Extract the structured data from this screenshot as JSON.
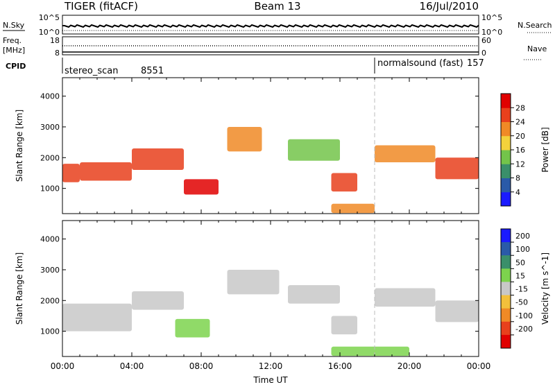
{
  "header": {
    "radar": "TIGER (fitACF)",
    "beam": "Beam 13",
    "date": "16/Jul/2010"
  },
  "summary_strips": {
    "nsky": {
      "left_label": "N.Sky",
      "left_ticks": [
        "10^5",
        "10^0"
      ],
      "right_label": "N.Search",
      "right_ticks": [
        "10^5",
        "10^0"
      ]
    },
    "freq": {
      "left_label_line1": "Freq.",
      "left_label_line2": "[MHz]",
      "left_ticks": [
        "18",
        "8"
      ],
      "right_label": "Nave",
      "right_ticks": [
        "60",
        "0"
      ]
    },
    "cpid": {
      "label": "CPID",
      "programs": [
        {
          "name": "stereo_scan",
          "id": "8551",
          "start_hour": 0
        },
        {
          "name": "normalsound (fast)",
          "id": "157",
          "start_hour": 18
        }
      ]
    }
  },
  "chart_data": [
    {
      "type": "heatmap",
      "title": "",
      "xlabel": "",
      "ylabel": "Slant Range [km]",
      "xlim": [
        "00:00",
        "24:00"
      ],
      "ylim": [
        180,
        4600
      ],
      "y_ticks": [
        1000,
        2000,
        3000,
        4000
      ],
      "colorbar": {
        "label": "Power [dB]",
        "ticks": [
          4,
          8,
          12,
          16,
          20,
          24,
          28
        ],
        "range": [
          0,
          32
        ],
        "colors": [
          "#1a1aff",
          "#2a5aa8",
          "#3a8f6a",
          "#73c44a",
          "#f3d23c",
          "#f08a26",
          "#e8401c",
          "#e00000"
        ]
      },
      "echo_regions": [
        {
          "start": "00:00",
          "end": "01:00",
          "range_km": [
            1200,
            1800
          ],
          "level_db": 24
        },
        {
          "start": "01:00",
          "end": "04:00",
          "range_km": [
            1250,
            1850
          ],
          "level_db": 26
        },
        {
          "start": "04:00",
          "end": "07:00",
          "range_km": [
            1600,
            2300
          ],
          "level_db": 24
        },
        {
          "start": "07:00",
          "end": "09:00",
          "range_km": [
            800,
            1300
          ],
          "level_db": 29
        },
        {
          "start": "09:30",
          "end": "11:30",
          "range_km": [
            2200,
            3000
          ],
          "level_db": 22
        },
        {
          "start": "13:00",
          "end": "16:00",
          "range_km": [
            1900,
            2600
          ],
          "level_db": 14
        },
        {
          "start": "15:30",
          "end": "17:00",
          "range_km": [
            900,
            1500
          ],
          "level_db": 24
        },
        {
          "start": "15:30",
          "end": "18:00",
          "range_km": [
            200,
            500
          ],
          "level_db": 22
        },
        {
          "start": "18:00",
          "end": "21:30",
          "range_km": [
            1850,
            2400
          ],
          "level_db": 20
        },
        {
          "start": "21:30",
          "end": "24:00",
          "range_km": [
            1300,
            2000
          ],
          "level_db": 26
        }
      ]
    },
    {
      "type": "heatmap",
      "title": "",
      "xlabel": "Time UT",
      "ylabel": "Slant Range [km]",
      "xlim": [
        "00:00",
        "24:00"
      ],
      "ylim": [
        180,
        4600
      ],
      "y_ticks": [
        1000,
        2000,
        3000,
        4000
      ],
      "x_ticks": [
        "00:00",
        "04:00",
        "08:00",
        "12:00",
        "16:00",
        "20:00",
        "00:00"
      ],
      "colorbar": {
        "label": "Velocity [m s^-1]",
        "ticks": [
          200,
          100,
          50,
          15,
          -15,
          -50,
          -100,
          -200
        ],
        "colors": [
          "#1a1aff",
          "#2a5aa8",
          "#3a8f6a",
          "#7dd34d",
          "#c8c8c8",
          "#f3c03c",
          "#f08a26",
          "#e8401c",
          "#e00000"
        ]
      },
      "echo_regions": [
        {
          "start": "00:00",
          "end": "04:00",
          "range_km": [
            1000,
            1900
          ],
          "velocity": 0
        },
        {
          "start": "04:00",
          "end": "07:00",
          "range_km": [
            1700,
            2300
          ],
          "velocity": 0
        },
        {
          "start": "06:30",
          "end": "08:30",
          "range_km": [
            800,
            1400
          ],
          "velocity": 30
        },
        {
          "start": "09:30",
          "end": "12:30",
          "range_km": [
            2200,
            3000
          ],
          "velocity": 0
        },
        {
          "start": "13:00",
          "end": "16:00",
          "range_km": [
            1900,
            2500
          ],
          "velocity": 0
        },
        {
          "start": "15:30",
          "end": "17:00",
          "range_km": [
            900,
            1500
          ],
          "velocity": 0
        },
        {
          "start": "15:30",
          "end": "20:00",
          "range_km": [
            200,
            500
          ],
          "velocity": 20
        },
        {
          "start": "18:00",
          "end": "21:30",
          "range_km": [
            1800,
            2400
          ],
          "velocity": 0
        },
        {
          "start": "21:30",
          "end": "24:00",
          "range_km": [
            1300,
            2000
          ],
          "velocity": 0
        }
      ]
    }
  ]
}
